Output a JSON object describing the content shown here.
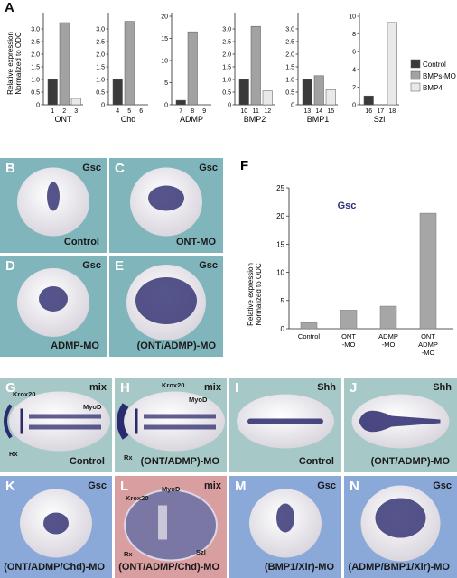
{
  "figure": {
    "panel_letters": {
      "A": "A",
      "F": "F"
    },
    "embryo_panels": [
      {
        "id": "B",
        "letter": "B",
        "marker": "Gsc",
        "caption": "Control",
        "bg": "#7fb5bb"
      },
      {
        "id": "C",
        "letter": "C",
        "marker": "Gsc",
        "caption": "ONT-MO",
        "bg": "#7fb5bb"
      },
      {
        "id": "D",
        "letter": "D",
        "marker": "Gsc",
        "caption": "ADMP-MO",
        "bg": "#7fb5bb"
      },
      {
        "id": "E",
        "letter": "E",
        "marker": "Gsc",
        "caption": "(ONT/ADMP)-MO",
        "bg": "#7fb5bb"
      },
      {
        "id": "G",
        "letter": "G",
        "marker": "mix",
        "caption": "Control",
        "bg": "#a6c8c6"
      },
      {
        "id": "H",
        "letter": "H",
        "marker": "mix",
        "caption": "(ONT/ADMP)-MO",
        "bg": "#a6c8c6"
      },
      {
        "id": "I",
        "letter": "I",
        "marker": "Shh",
        "caption": "Control",
        "bg": "#a6c8c6"
      },
      {
        "id": "J",
        "letter": "J",
        "marker": "Shh",
        "caption": "(ONT/ADMP)-MO",
        "bg": "#a6c8c6"
      },
      {
        "id": "K",
        "letter": "K",
        "marker": "Gsc",
        "caption": "(ONT/ADMP/Chd)-MO",
        "bg": "#8aa8d8"
      },
      {
        "id": "L",
        "letter": "L",
        "marker": "mix",
        "caption": "(ONT/ADMP/Chd)-MO",
        "bg": "#d99ea0"
      },
      {
        "id": "M",
        "letter": "M",
        "marker": "Gsc",
        "caption": "(BMP1/Xlr)-MO",
        "bg": "#8aa8d8"
      },
      {
        "id": "N",
        "letter": "N",
        "marker": "Gsc",
        "caption": "(ADMP/BMP1/Xlr)-MO",
        "bg": "#8aa8d8"
      }
    ],
    "annotations": {
      "G": {
        "krox20": "Krox20",
        "myod": "MyoD",
        "rx": "Rx"
      },
      "H": {
        "krox20": "Krox20",
        "myod": "MyoD",
        "rx": "Rx"
      },
      "L": {
        "krox20": "Krox20",
        "myod": "MyoD",
        "rx": "Rx",
        "szl": "Szl"
      }
    }
  },
  "chart_data": [
    {
      "type": "bar",
      "panel": "A",
      "ylabel_line1": "Relative expression",
      "ylabel_line2": "Normalized to ODC",
      "legend": [
        {
          "name": "Control",
          "color": "#3a3a3a"
        },
        {
          "name": "BMPs-MO",
          "color": "#a2a2a2"
        },
        {
          "name": "BMP4",
          "color": "#e9e9e9"
        }
      ],
      "legend_position": "right",
      "subplots": [
        {
          "label": "ONT",
          "ylim": [
            0,
            3.5
          ],
          "ticks": [
            "0",
            "0.5",
            "1.0",
            "1.5",
            "2.0",
            "2.5",
            "3.0"
          ],
          "tick_values": [
            0,
            0.5,
            1,
            1.5,
            2,
            2.5,
            3
          ],
          "bar_numbers": [
            "1",
            "2",
            "3"
          ],
          "values": [
            1.0,
            3.25,
            0.25
          ]
        },
        {
          "label": "Chd",
          "ylim": [
            0,
            3.5
          ],
          "ticks": [
            "0",
            "0.5",
            "1.0",
            "1.5",
            "2.0",
            "2.5",
            "3.0"
          ],
          "tick_values": [
            0,
            0.5,
            1,
            1.5,
            2,
            2.5,
            3
          ],
          "bar_numbers": [
            "4",
            "5",
            "6"
          ],
          "values": [
            1.0,
            3.3,
            0.0
          ]
        },
        {
          "label": "ADMP",
          "ylim": [
            0,
            20
          ],
          "ticks": [
            "0",
            "5",
            "10",
            "15",
            "20"
          ],
          "tick_values": [
            0,
            5,
            10,
            15,
            20
          ],
          "bar_numbers": [
            "7",
            "8",
            "9"
          ],
          "values": [
            1.0,
            16.5,
            0.0
          ]
        },
        {
          "label": "BMP2",
          "ylim": [
            0,
            3.5
          ],
          "ticks": [
            "0",
            "0.5",
            "1.0",
            "1.5",
            "2.0",
            "2.5",
            "3.0"
          ],
          "tick_values": [
            0,
            0.5,
            1,
            1.5,
            2,
            2.5,
            3
          ],
          "bar_numbers": [
            "10",
            "11",
            "12"
          ],
          "values": [
            1.0,
            3.1,
            0.55
          ]
        },
        {
          "label": "BMP1",
          "ylim": [
            0,
            3.5
          ],
          "ticks": [
            "0",
            "0.5",
            "1.0",
            "1.5",
            "2.0",
            "2.5",
            "3.0"
          ],
          "tick_values": [
            0,
            0.5,
            1,
            1.5,
            2,
            2.5,
            3
          ],
          "bar_numbers": [
            "13",
            "14",
            "15"
          ],
          "values": [
            1.0,
            1.15,
            0.6
          ]
        },
        {
          "label": "Szl",
          "ylim": [
            0,
            10
          ],
          "ticks": [
            "0",
            "2",
            "4",
            "6",
            "8",
            "10"
          ],
          "tick_values": [
            0,
            2,
            4,
            6,
            8,
            10
          ],
          "bar_numbers": [
            "16",
            "17",
            "18"
          ],
          "values": [
            1.0,
            0.0,
            9.3
          ]
        }
      ]
    },
    {
      "type": "bar",
      "panel": "F",
      "title": "Gsc",
      "ylabel_line1": "Relative expression",
      "ylabel_line2": "Normalized to ODC",
      "ylim": [
        0,
        25
      ],
      "ticks": [
        "0",
        "5",
        "10",
        "15",
        "20",
        "25"
      ],
      "tick_values": [
        0,
        5,
        10,
        15,
        20,
        25
      ],
      "categories": [
        [
          "Control"
        ],
        [
          "ONT",
          "-MO"
        ],
        [
          "ADMP",
          "-MO"
        ],
        [
          "ONT",
          "ADMP",
          "-MO"
        ]
      ],
      "values": [
        1.1,
        3.3,
        4.0,
        20.5
      ],
      "color": "#a6a6a6"
    }
  ]
}
